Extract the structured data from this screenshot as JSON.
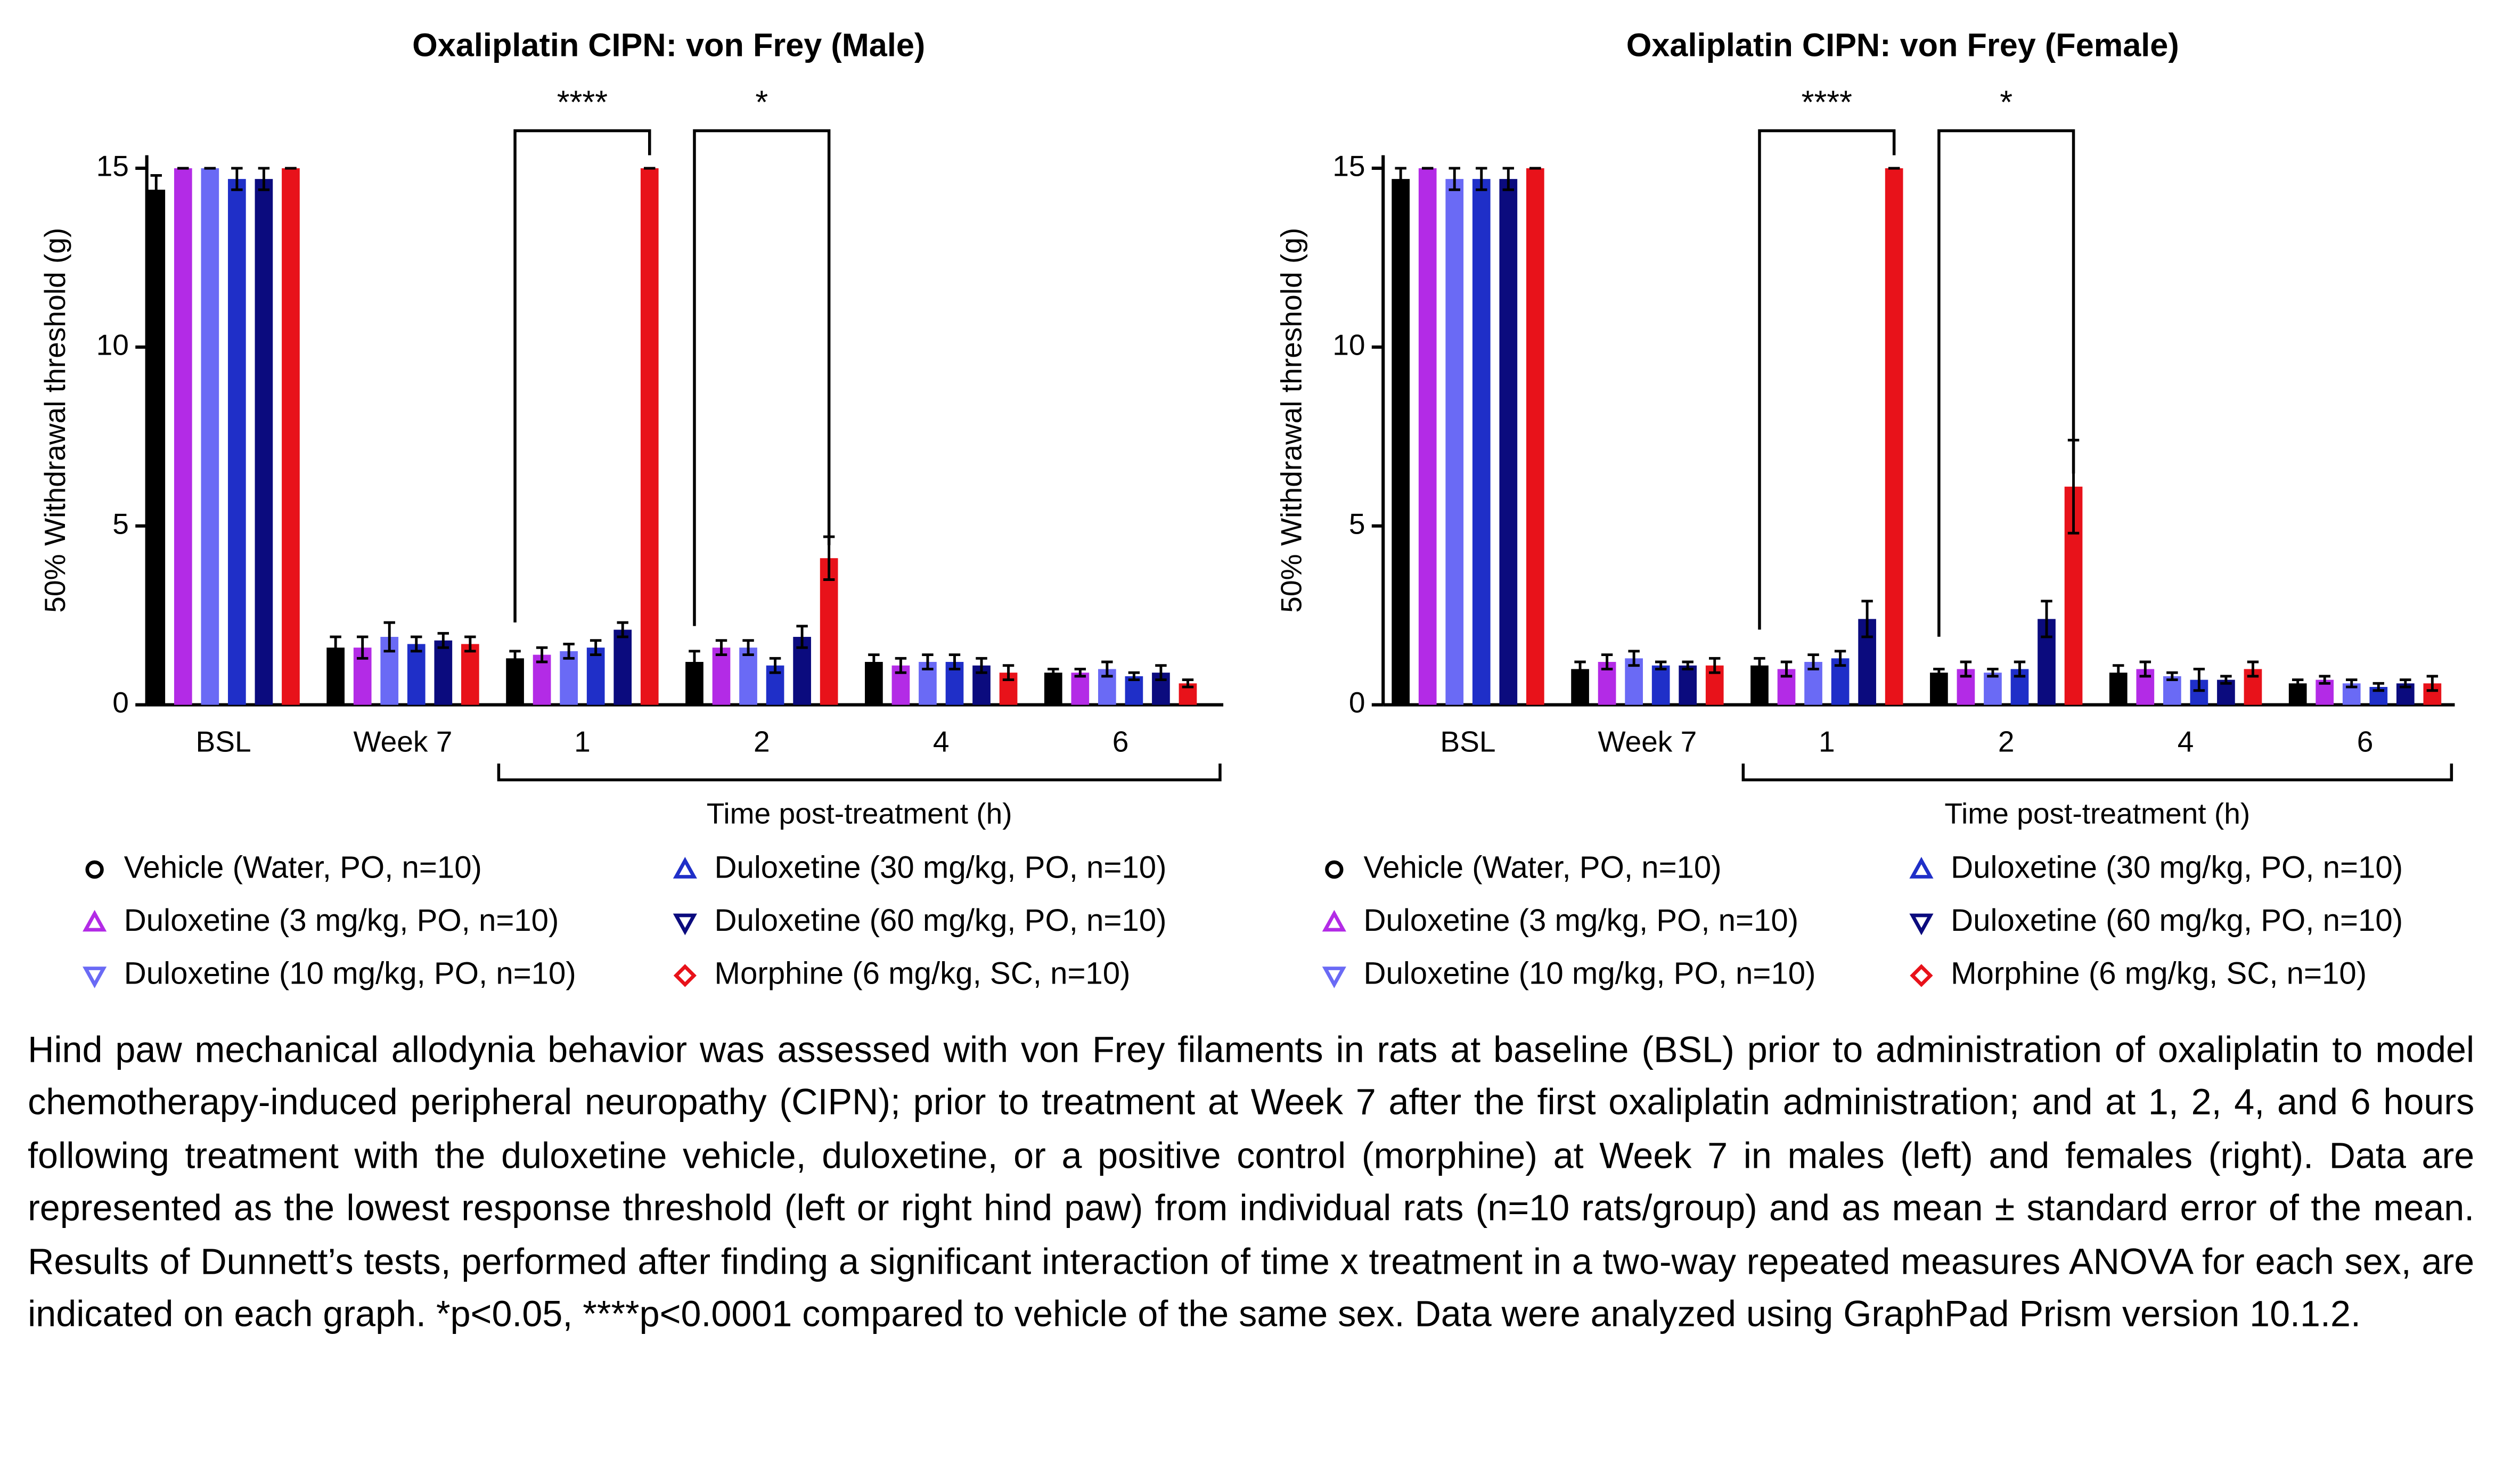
{
  "chart_data": [
    {
      "type": "bar",
      "title": "Oxaliplatin CIPN: von Frey (Male)",
      "ylabel": "50% Withdrawal threshold (g)",
      "xlabel": "Time post-treatment (h)",
      "categories": [
        "BSL",
        "Week 7",
        "1",
        "2",
        "4",
        "6"
      ],
      "ylim": [
        0,
        15
      ],
      "yticks": [
        0,
        5,
        10,
        15
      ],
      "series": [
        {
          "name": "Vehicle (Water, PO, n=10)",
          "color": "#000000",
          "marker": "circle",
          "values": [
            14.4,
            1.6,
            1.3,
            1.2,
            1.2,
            0.9
          ],
          "errors": [
            0.4,
            0.3,
            0.2,
            0.3,
            0.2,
            0.1
          ]
        },
        {
          "name": "Duloxetine (3 mg/kg, PO, n=10)",
          "color": "#b32be6",
          "marker": "triangle-up",
          "values": [
            15,
            1.6,
            1.4,
            1.6,
            1.1,
            0.9
          ],
          "errors": [
            0,
            0.3,
            0.2,
            0.2,
            0.2,
            0.1
          ]
        },
        {
          "name": "Duloxetine (10 mg/kg, PO, n=10)",
          "color": "#6a6af5",
          "marker": "triangle-down",
          "values": [
            15,
            1.9,
            1.5,
            1.6,
            1.2,
            1.0
          ],
          "errors": [
            0,
            0.4,
            0.2,
            0.2,
            0.2,
            0.2
          ]
        },
        {
          "name": "Duloxetine (30 mg/kg, PO, n=10)",
          "color": "#1f2fc8",
          "marker": "triangle-up",
          "values": [
            14.7,
            1.7,
            1.6,
            1.1,
            1.2,
            0.8
          ],
          "errors": [
            0.3,
            0.2,
            0.2,
            0.2,
            0.2,
            0.1
          ]
        },
        {
          "name": "Duloxetine (60 mg/kg, PO, n=10)",
          "color": "#0b0b7e",
          "marker": "triangle-down",
          "values": [
            14.7,
            1.8,
            2.1,
            1.9,
            1.1,
            0.9
          ],
          "errors": [
            0.3,
            0.2,
            0.2,
            0.3,
            0.2,
            0.2
          ]
        },
        {
          "name": "Morphine (6 mg/kg, SC, n=10)",
          "color": "#e8121a",
          "marker": "diamond",
          "values": [
            15,
            1.7,
            15,
            4.1,
            0.9,
            0.6
          ],
          "errors": [
            0,
            0.2,
            0,
            0.6,
            0.2,
            0.1
          ]
        }
      ],
      "annotations": [
        {
          "text": "****",
          "category": "1"
        },
        {
          "text": "*",
          "category": "2"
        }
      ]
    },
    {
      "type": "bar",
      "title": "Oxaliplatin CIPN: von Frey (Female)",
      "ylabel": "50% Withdrawal threshold (g)",
      "xlabel": "Time post-treatment (h)",
      "categories": [
        "BSL",
        "Week 7",
        "1",
        "2",
        "4",
        "6"
      ],
      "ylim": [
        0,
        15
      ],
      "yticks": [
        0,
        5,
        10,
        15
      ],
      "series": [
        {
          "name": "Vehicle (Water, PO, n=10)",
          "color": "#000000",
          "marker": "circle",
          "values": [
            14.7,
            1.0,
            1.1,
            0.9,
            0.9,
            0.6
          ],
          "errors": [
            0.3,
            0.2,
            0.2,
            0.1,
            0.2,
            0.1
          ]
        },
        {
          "name": "Duloxetine (3 mg/kg, PO, n=10)",
          "color": "#b32be6",
          "marker": "triangle-up",
          "values": [
            15,
            1.2,
            1.0,
            1.0,
            1.0,
            0.7
          ],
          "errors": [
            0,
            0.2,
            0.2,
            0.2,
            0.2,
            0.1
          ]
        },
        {
          "name": "Duloxetine (10 mg/kg, PO, n=10)",
          "color": "#6a6af5",
          "marker": "triangle-down",
          "values": [
            14.7,
            1.3,
            1.2,
            0.9,
            0.8,
            0.6
          ],
          "errors": [
            0.3,
            0.2,
            0.2,
            0.1,
            0.1,
            0.1
          ]
        },
        {
          "name": "Duloxetine (30 mg/kg, PO, n=10)",
          "color": "#1f2fc8",
          "marker": "triangle-up",
          "values": [
            14.7,
            1.1,
            1.3,
            1.0,
            0.7,
            0.5
          ],
          "errors": [
            0.3,
            0.1,
            0.2,
            0.2,
            0.3,
            0.1
          ]
        },
        {
          "name": "Duloxetine (60 mg/kg, PO, n=10)",
          "color": "#0b0b7e",
          "marker": "triangle-down",
          "values": [
            14.7,
            1.1,
            2.4,
            2.4,
            0.7,
            0.6
          ],
          "errors": [
            0.3,
            0.1,
            0.5,
            0.5,
            0.1,
            0.1
          ]
        },
        {
          "name": "Morphine (6 mg/kg, SC, n=10)",
          "color": "#e8121a",
          "marker": "diamond",
          "values": [
            15,
            1.1,
            15,
            6.1,
            1.0,
            0.6
          ],
          "errors": [
            0,
            0.2,
            0,
            1.3,
            0.2,
            0.2
          ]
        }
      ],
      "annotations": [
        {
          "text": "****",
          "category": "1"
        },
        {
          "text": "*",
          "category": "2"
        }
      ]
    }
  ],
  "caption": "Hind paw mechanical allodynia behavior was assessed with von Frey filaments in rats at baseline (BSL) prior to administration of oxaliplatin to model chemotherapy-induced peripheral neuropathy (CIPN); prior to treatment at Week 7 after the first oxaliplatin administration; and at 1, 2, 4, and 6 hours following treatment with the duloxetine vehicle, duloxetine, or a positive control (morphine) at Week 7 in males (left) and females (right). Data are represented as the lowest response threshold (left or right hind paw) from individual rats (n=10 rats/group) and as mean ± standard error of the mean. Results of Dunnett’s tests, performed after finding a significant interaction of time x treatment in a two-way repeated measures ANOVA for each sex, are indicated on each graph. *p<0.05, ****p<0.0001 compared to vehicle of the same sex. Data were analyzed using GraphPad Prism version 10.1.2."
}
